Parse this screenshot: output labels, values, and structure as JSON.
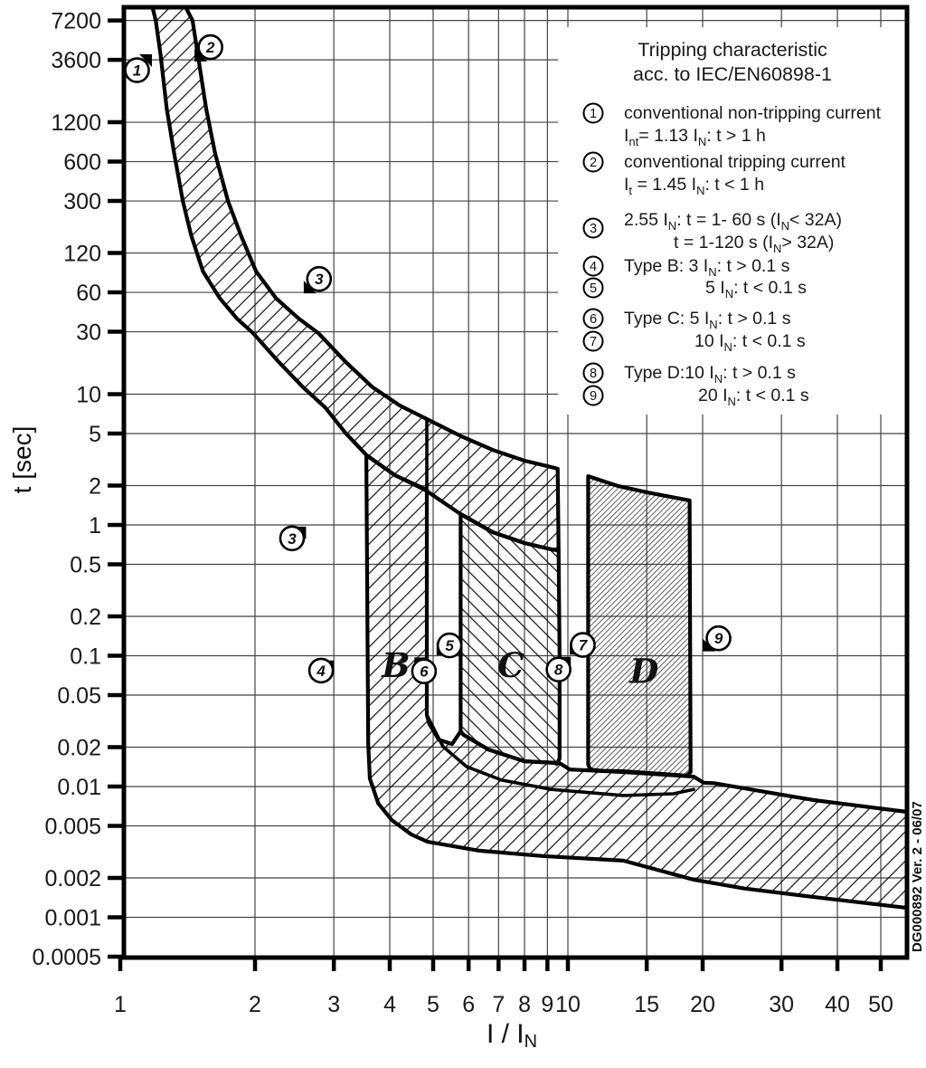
{
  "legend": {
    "title_line1": "Tripping characteristic",
    "title_line2": "acc. to IEC/EN60898-1",
    "items": [
      {
        "num": "1",
        "lines": [
          "conventional non-tripping current",
          "I~nt~= 1.13 I~N~: t > 1 h"
        ]
      },
      {
        "num": "2",
        "lines": [
          "conventional tripping current",
          "I~t~ = 1.45 I~N~: t < 1 h"
        ]
      },
      {
        "num": "3",
        "lines": [
          "2.55 I~N~: t = 1- 60 s (I~N~< 32A)",
          "t = 1-120 s (I~N~> 32A)"
        ]
      },
      {
        "num": "4",
        "lines": [
          "Type B: 3 I~N~: t > 0.1 s"
        ]
      },
      {
        "num": "5",
        "lines": [
          "5 I~N~: t < 0.1 s"
        ]
      },
      {
        "num": "6",
        "lines": [
          "Type C: 5 I~N~: t > 0.1 s"
        ]
      },
      {
        "num": "7",
        "lines": [
          "10 I~N~: t < 0.1 s"
        ]
      },
      {
        "num": "8",
        "lines": [
          "Type D:10 I~N~: t > 0.1 s"
        ]
      },
      {
        "num": "9",
        "lines": [
          "20 I~N~: t < 0.1 s"
        ]
      }
    ]
  },
  "watermark": "DG000892 Ver. 2 - 06/07",
  "chart_data": {
    "type": "area",
    "title": "Tripping characteristic acc. to IEC/EN60898-1",
    "xlabel": "I / I~N~",
    "ylabel": "t [sec]",
    "x_scale": "log",
    "y_scale": "log",
    "xlim": [
      1,
      58
    ],
    "ylim": [
      0.0005,
      9100
    ],
    "x_ticks": [
      "1",
      "2",
      "3",
      "4",
      "5",
      "6",
      "7",
      "8",
      "9",
      "10",
      "15",
      "20",
      "30",
      "40",
      "50"
    ],
    "y_ticks": [
      "7200",
      "3600",
      "1200",
      "600",
      "300",
      "120",
      "60",
      "30",
      "10",
      "5",
      "2",
      "1",
      "0.5",
      "0.2",
      "0.1",
      "0.05",
      "0.02",
      "0.01",
      "0.005",
      "0.002",
      "0.001",
      "0.0005"
    ],
    "grid": true,
    "upper_curve": [
      [
        1.4,
        9100
      ],
      [
        1.45,
        7200
      ],
      [
        1.49,
        3970
      ],
      [
        1.556,
        1520
      ],
      [
        1.63,
        687
      ],
      [
        1.74,
        300
      ],
      [
        1.86,
        164
      ],
      [
        2.01,
        87
      ],
      [
        2.23,
        54
      ],
      [
        2.5,
        38
      ],
      [
        2.77,
        29.3
      ],
      [
        3.19,
        17.6
      ],
      [
        3.66,
        11.3
      ],
      [
        4.21,
        8.2
      ],
      [
        4.84,
        6.45
      ],
      [
        5.78,
        4.76
      ],
      [
        6.79,
        3.75
      ],
      [
        8.0,
        3.1
      ],
      [
        8.98,
        2.82
      ],
      [
        9.49,
        2.69
      ],
      [
        10.7,
        2.4
      ],
      [
        12.9,
        1.99
      ],
      [
        15.1,
        1.77
      ],
      [
        18.7,
        1.54
      ]
    ],
    "lower_curve": [
      [
        1.18,
        9100
      ],
      [
        1.2,
        7200
      ],
      [
        1.23,
        3970
      ],
      [
        1.27,
        1520
      ],
      [
        1.32,
        687
      ],
      [
        1.38,
        300
      ],
      [
        1.44,
        164
      ],
      [
        1.53,
        87
      ],
      [
        1.67,
        54
      ],
      [
        1.82,
        38
      ],
      [
        1.98,
        29.3
      ],
      [
        2.26,
        17.6
      ],
      [
        2.56,
        11.3
      ],
      [
        2.87,
        7.9
      ],
      [
        3.18,
        5.08
      ],
      [
        3.55,
        3.41
      ],
      [
        4.11,
        2.4
      ],
      [
        4.79,
        1.86
      ],
      [
        5.76,
        1.21
      ],
      [
        6.79,
        0.88
      ],
      [
        8.0,
        0.727
      ],
      [
        9.19,
        0.65
      ],
      [
        10.7,
        0.588
      ]
    ],
    "regions": [
      {
        "name": "thermal-band",
        "hatch": "fwd",
        "points": [
          [
            1.4,
            9100
          ],
          [
            1.45,
            7200
          ],
          [
            1.49,
            3970
          ],
          [
            1.556,
            1520
          ],
          [
            1.63,
            687
          ],
          [
            1.74,
            300
          ],
          [
            1.86,
            164
          ],
          [
            2.01,
            87
          ],
          [
            2.23,
            54
          ],
          [
            2.5,
            38
          ],
          [
            2.77,
            29.3
          ],
          [
            3.19,
            17.6
          ],
          [
            3.66,
            11.3
          ],
          [
            4.21,
            8.2
          ],
          [
            4.84,
            6.45
          ],
          [
            5.78,
            4.76
          ],
          [
            6.79,
            3.75
          ],
          [
            8.0,
            3.1
          ],
          [
            8.98,
            2.82
          ],
          [
            9.49,
            2.69
          ],
          [
            9.53,
            0.64
          ],
          [
            9.19,
            0.65
          ],
          [
            8.0,
            0.727
          ],
          [
            6.79,
            0.88
          ],
          [
            5.76,
            1.21
          ],
          [
            4.79,
            1.86
          ],
          [
            4.11,
            2.4
          ],
          [
            3.55,
            3.41
          ],
          [
            3.18,
            5.08
          ],
          [
            2.87,
            7.9
          ],
          [
            2.56,
            11.3
          ],
          [
            2.26,
            17.6
          ],
          [
            1.98,
            29.3
          ],
          [
            1.82,
            38
          ],
          [
            1.67,
            54
          ],
          [
            1.53,
            87
          ],
          [
            1.44,
            164
          ],
          [
            1.38,
            300
          ],
          [
            1.32,
            687
          ],
          [
            1.27,
            1520
          ],
          [
            1.23,
            3970
          ],
          [
            1.2,
            7200
          ],
          [
            1.18,
            9100
          ]
        ]
      },
      {
        "name": "type-b-and-bottom-band",
        "hatch": "fwd",
        "points": [
          [
            3.546,
            3.41
          ],
          [
            3.58,
            0.0211
          ],
          [
            3.61,
            0.0115
          ],
          [
            3.77,
            0.00742
          ],
          [
            4.04,
            0.00554
          ],
          [
            4.47,
            0.0043
          ],
          [
            4.86,
            0.00378
          ],
          [
            6.34,
            0.00323
          ],
          [
            8.78,
            0.00294
          ],
          [
            13.3,
            0.00271
          ],
          [
            19.1,
            0.00194
          ],
          [
            24.8,
            0.00166
          ],
          [
            35.4,
            0.00143
          ],
          [
            57.2,
            0.00118
          ],
          [
            57.2,
            0.0064
          ],
          [
            35.4,
            0.00788
          ],
          [
            21.2,
            0.0106
          ],
          [
            20.1,
            0.0107
          ],
          [
            19.1,
            0.0119
          ],
          [
            13.3,
            0.0129
          ],
          [
            11.1,
            0.0133
          ],
          [
            10.1,
            0.0135
          ],
          [
            9.58,
            0.0151
          ],
          [
            8.0,
            0.0156
          ],
          [
            6.64,
            0.0192
          ],
          [
            5.85,
            0.0248
          ],
          [
            5.76,
            0.0264
          ],
          [
            5.51,
            0.0211
          ],
          [
            5.15,
            0.0228
          ],
          [
            4.9,
            0.0302
          ],
          [
            4.84,
            0.0352
          ],
          [
            4.84,
            0.102
          ],
          [
            4.84,
            1.86
          ],
          [
            4.11,
            2.4
          ]
        ]
      },
      {
        "name": "type-c-band",
        "hatch": "bwd",
        "points": [
          [
            5.76,
            1.21
          ],
          [
            6.79,
            0.88
          ],
          [
            8.0,
            0.727
          ],
          [
            9.19,
            0.65
          ],
          [
            9.53,
            0.64
          ],
          [
            9.58,
            0.102
          ],
          [
            9.58,
            0.0164
          ],
          [
            9.45,
            0.0149
          ],
          [
            9.3,
            0.0152
          ],
          [
            8.0,
            0.0156
          ],
          [
            6.64,
            0.0192
          ],
          [
            5.85,
            0.0248
          ],
          [
            5.76,
            0.0264
          ]
        ]
      },
      {
        "name": "type-d-band",
        "hatch": "dense",
        "points": [
          [
            11.1,
            2.36
          ],
          [
            12.9,
            1.99
          ],
          [
            15.1,
            1.77
          ],
          [
            18.7,
            1.54
          ],
          [
            18.8,
            0.0129
          ],
          [
            18.4,
            0.0121
          ],
          [
            13.3,
            0.0131
          ],
          [
            11.9,
            0.0132
          ],
          [
            11.2,
            0.0135
          ],
          [
            11.1,
            0.0148
          ]
        ]
      }
    ],
    "extra_lines": [
      {
        "name": "b-right-edge-upper",
        "points": [
          [
            4.84,
            6.45
          ],
          [
            4.84,
            1.86
          ]
        ]
      },
      {
        "name": "inner-bottom-curve",
        "points": [
          [
            4.84,
            0.0352
          ],
          [
            5.26,
            0.0202
          ],
          [
            5.94,
            0.0142
          ],
          [
            7.11,
            0.0112
          ],
          [
            9.19,
            0.0095
          ],
          [
            13.3,
            0.00854
          ],
          [
            17.2,
            0.0088
          ],
          [
            19.1,
            0.0095
          ]
        ]
      }
    ],
    "markers": [
      {
        "n": "1",
        "I": 1.09,
        "t": 3000,
        "aI": 1.177,
        "at": 3970,
        "q": "sw"
      },
      {
        "n": "2",
        "I": 1.59,
        "t": 4500,
        "aI": 1.465,
        "at": 3500,
        "q": "ne"
      },
      {
        "n": "3",
        "I": 2.78,
        "t": 76,
        "aI": 2.57,
        "at": 59,
        "q": "ne"
      },
      {
        "n": "3",
        "I": 2.42,
        "t": 0.79,
        "aI": 2.6,
        "at": 0.97,
        "q": "sw"
      },
      {
        "n": "4",
        "I": 2.81,
        "t": 0.077,
        "aI": 3.0,
        "at": 0.092,
        "q": "sw"
      },
      {
        "n": "5",
        "I": 5.44,
        "t": 0.12,
        "aI": 5.09,
        "at": 0.101,
        "q": "ne"
      },
      {
        "n": "6",
        "I": 4.77,
        "t": 0.076,
        "aI": 4.54,
        "at": 0.097,
        "q": "se"
      },
      {
        "n": "7",
        "I": 10.8,
        "t": 0.121,
        "aI": 10.1,
        "at": 0.102,
        "q": "ne"
      },
      {
        "n": "8",
        "I": 9.53,
        "t": 0.0785,
        "aI": 10.15,
        "at": 0.098,
        "q": "sw"
      },
      {
        "n": "9",
        "I": 21.7,
        "t": 0.136,
        "aI": 20.0,
        "at": 0.108,
        "q": "ne"
      }
    ],
    "region_labels": [
      {
        "text": "B",
        "I": 4.13,
        "t": 0.069
      },
      {
        "text": "C",
        "I": 7.46,
        "t": 0.069
      },
      {
        "text": "D",
        "I": 14.8,
        "t": 0.062
      }
    ]
  }
}
